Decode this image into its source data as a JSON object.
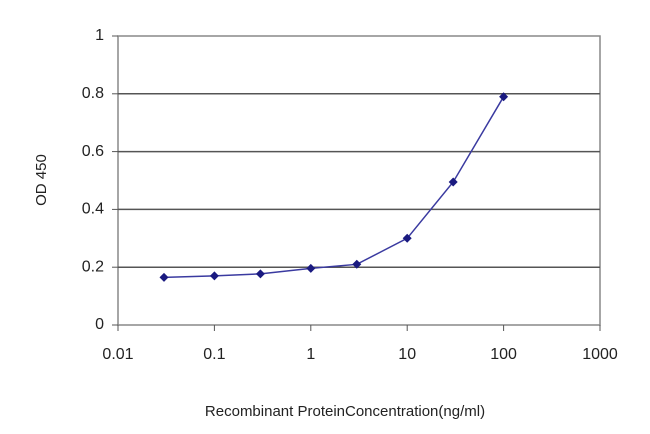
{
  "chart_data": {
    "type": "line",
    "x_label": "Recombinant ProteinConcentration(ng/ml)",
    "y_label": "OD 450",
    "x": [
      0.03,
      0.1,
      0.3,
      1,
      3,
      10,
      30,
      100
    ],
    "series": [
      {
        "name": "OD",
        "color": "#3a3aa0",
        "values": [
          0.165,
          0.17,
          0.177,
          0.196,
          0.21,
          0.3,
          0.495,
          0.79
        ]
      }
    ],
    "xscale": "log",
    "xlim": [
      0.01,
      1000
    ],
    "xticks": [
      0.01,
      0.1,
      1,
      10,
      100,
      1000
    ],
    "ylim": [
      0,
      1
    ],
    "yticks": [
      0,
      0.2,
      0.4,
      0.6,
      0.8,
      1
    ],
    "grid": true
  }
}
